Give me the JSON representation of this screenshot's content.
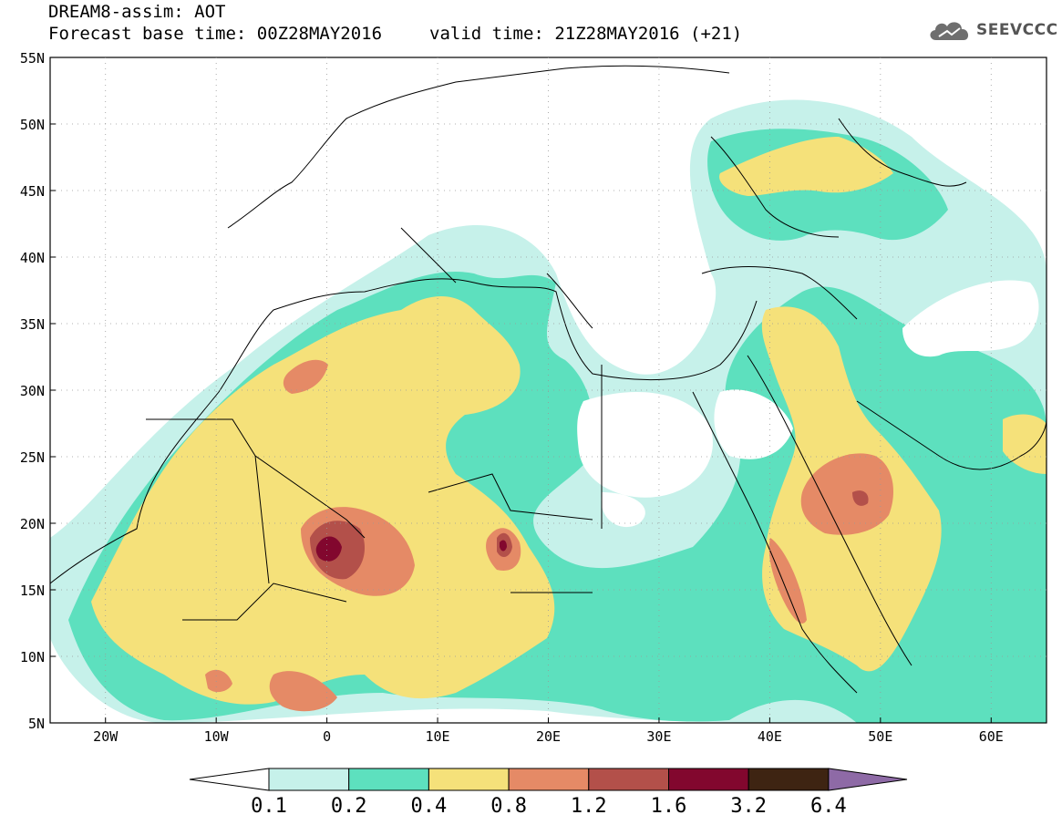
{
  "header": {
    "line1": "DREAM8-assim: AOT",
    "base_time": "Forecast base time: 00Z28MAY2016",
    "valid_time": "valid time: 21Z28MAY2016 (+21)"
  },
  "logo": {
    "text": "SEEVCCC",
    "icon": "cloud-icon"
  },
  "map": {
    "lat_labels": [
      "55N",
      "50N",
      "45N",
      "40N",
      "35N",
      "30N",
      "25N",
      "20N",
      "15N",
      "10N",
      "5N"
    ],
    "lon_labels": [
      "20W",
      "10W",
      "0",
      "10E",
      "20E",
      "30E",
      "40E",
      "50E",
      "60E"
    ],
    "lat_range": [
      5,
      55
    ],
    "lon_range": [
      -25,
      65
    ],
    "grid": "dotted"
  },
  "legend": {
    "labels": [
      "0.1",
      "0.2",
      "0.4",
      "0.8",
      "1.2",
      "1.6",
      "3.2",
      "6.4"
    ],
    "colors": [
      "#ffffff",
      "#c6f1ea",
      "#5de0be",
      "#f5e17a",
      "#e58a66",
      "#b3504a",
      "#82072e",
      "#3e2412",
      "#8e6aa6"
    ]
  },
  "colors": {
    "level1": "#c6f1ea",
    "level2": "#5de0be",
    "level3": "#f5e17a",
    "level4": "#e58a66",
    "level5": "#b3504a",
    "level6": "#82072e"
  }
}
